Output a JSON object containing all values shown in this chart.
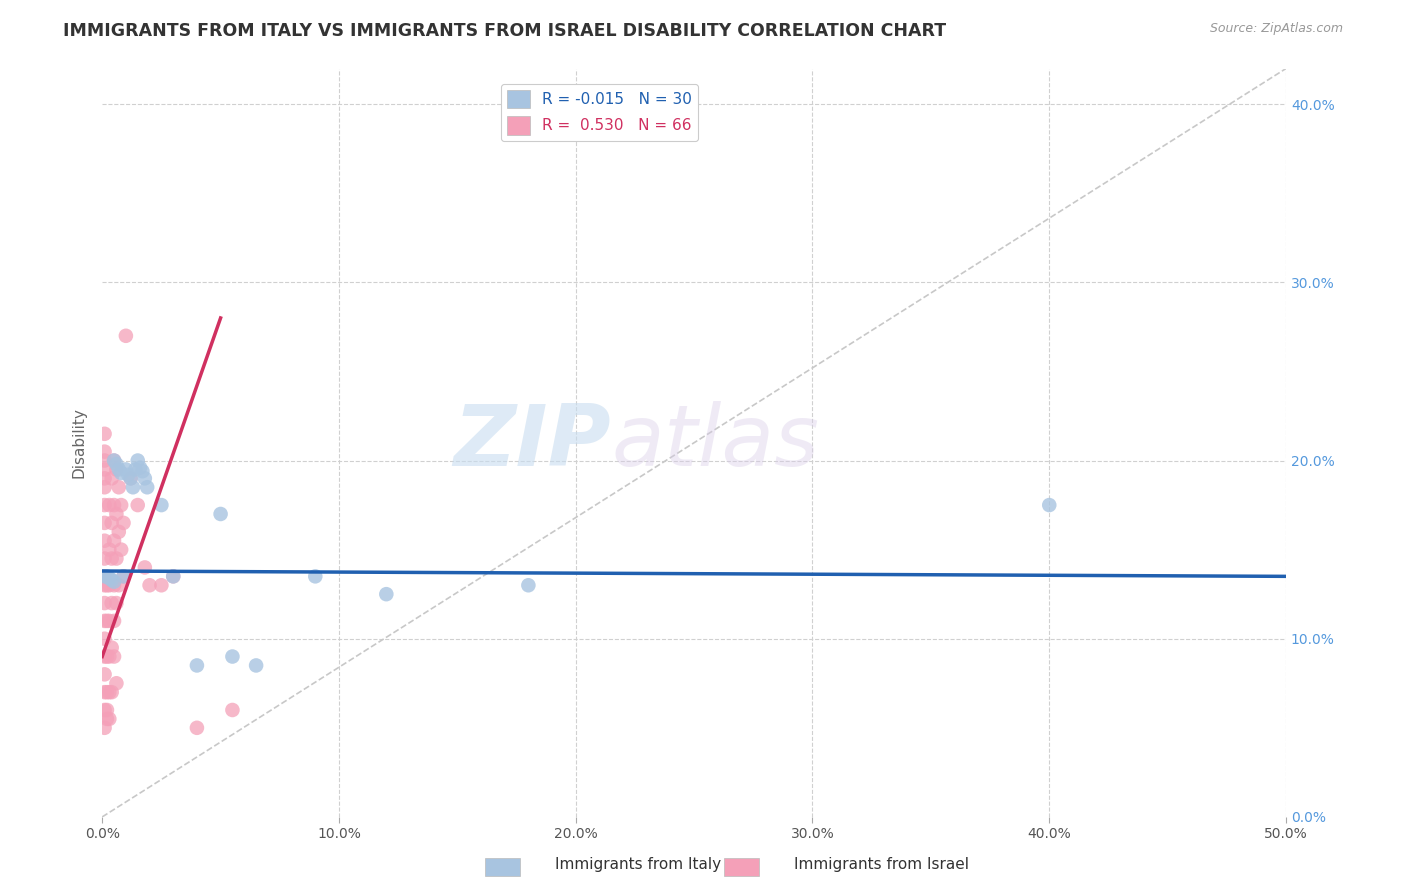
{
  "title": "IMMIGRANTS FROM ITALY VS IMMIGRANTS FROM ISRAEL DISABILITY CORRELATION CHART",
  "source": "Source: ZipAtlas.com",
  "ylabel": "Disability",
  "r_italy": -0.015,
  "n_italy": 30,
  "r_israel": 0.53,
  "n_israel": 66,
  "xlim": [
    0.0,
    0.5
  ],
  "ylim": [
    0.0,
    0.42
  ],
  "italy_color": "#a8c4e0",
  "israel_color": "#f4a0b8",
  "italy_line_color": "#2060b0",
  "israel_line_color": "#d03060",
  "diagonal_color": "#c8c8c8",
  "watermark_zip": "ZIP",
  "watermark_atlas": "atlas",
  "italy_scatter": [
    [
      0.001,
      0.135
    ],
    [
      0.002,
      0.135
    ],
    [
      0.003,
      0.134
    ],
    [
      0.004,
      0.133
    ],
    [
      0.005,
      0.132
    ],
    [
      0.005,
      0.2
    ],
    [
      0.006,
      0.198
    ],
    [
      0.007,
      0.195
    ],
    [
      0.008,
      0.193
    ],
    [
      0.009,
      0.135
    ],
    [
      0.01,
      0.195
    ],
    [
      0.011,
      0.192
    ],
    [
      0.012,
      0.19
    ],
    [
      0.013,
      0.185
    ],
    [
      0.014,
      0.195
    ],
    [
      0.015,
      0.2
    ],
    [
      0.016,
      0.196
    ],
    [
      0.017,
      0.194
    ],
    [
      0.018,
      0.19
    ],
    [
      0.019,
      0.185
    ],
    [
      0.025,
      0.175
    ],
    [
      0.03,
      0.135
    ],
    [
      0.04,
      0.085
    ],
    [
      0.05,
      0.17
    ],
    [
      0.055,
      0.09
    ],
    [
      0.065,
      0.085
    ],
    [
      0.09,
      0.135
    ],
    [
      0.12,
      0.125
    ],
    [
      0.18,
      0.13
    ],
    [
      0.4,
      0.175
    ]
  ],
  "israel_scatter": [
    [
      0.001,
      0.215
    ],
    [
      0.001,
      0.205
    ],
    [
      0.001,
      0.2
    ],
    [
      0.001,
      0.195
    ],
    [
      0.001,
      0.19
    ],
    [
      0.001,
      0.185
    ],
    [
      0.001,
      0.175
    ],
    [
      0.001,
      0.165
    ],
    [
      0.001,
      0.155
    ],
    [
      0.001,
      0.145
    ],
    [
      0.001,
      0.135
    ],
    [
      0.001,
      0.13
    ],
    [
      0.001,
      0.12
    ],
    [
      0.001,
      0.11
    ],
    [
      0.001,
      0.1
    ],
    [
      0.001,
      0.09
    ],
    [
      0.001,
      0.08
    ],
    [
      0.001,
      0.07
    ],
    [
      0.001,
      0.06
    ],
    [
      0.001,
      0.05
    ],
    [
      0.002,
      0.13
    ],
    [
      0.002,
      0.11
    ],
    [
      0.002,
      0.09
    ],
    [
      0.002,
      0.07
    ],
    [
      0.002,
      0.055
    ],
    [
      0.003,
      0.175
    ],
    [
      0.003,
      0.15
    ],
    [
      0.003,
      0.13
    ],
    [
      0.003,
      0.11
    ],
    [
      0.003,
      0.09
    ],
    [
      0.003,
      0.07
    ],
    [
      0.003,
      0.055
    ],
    [
      0.004,
      0.19
    ],
    [
      0.004,
      0.165
    ],
    [
      0.004,
      0.145
    ],
    [
      0.004,
      0.12
    ],
    [
      0.004,
      0.095
    ],
    [
      0.005,
      0.2
    ],
    [
      0.005,
      0.175
    ],
    [
      0.005,
      0.155
    ],
    [
      0.005,
      0.13
    ],
    [
      0.005,
      0.11
    ],
    [
      0.005,
      0.09
    ],
    [
      0.006,
      0.195
    ],
    [
      0.006,
      0.17
    ],
    [
      0.006,
      0.145
    ],
    [
      0.006,
      0.12
    ],
    [
      0.007,
      0.185
    ],
    [
      0.007,
      0.16
    ],
    [
      0.007,
      0.13
    ],
    [
      0.008,
      0.175
    ],
    [
      0.008,
      0.15
    ],
    [
      0.009,
      0.165
    ],
    [
      0.009,
      0.135
    ],
    [
      0.01,
      0.27
    ],
    [
      0.012,
      0.19
    ],
    [
      0.015,
      0.175
    ],
    [
      0.018,
      0.14
    ],
    [
      0.02,
      0.13
    ],
    [
      0.025,
      0.13
    ],
    [
      0.03,
      0.135
    ],
    [
      0.04,
      0.05
    ],
    [
      0.055,
      0.06
    ],
    [
      0.006,
      0.075
    ],
    [
      0.004,
      0.07
    ],
    [
      0.002,
      0.06
    ]
  ],
  "israel_line_endpoints": [
    [
      0.0,
      0.09
    ],
    [
      0.05,
      0.28
    ]
  ],
  "italy_line_endpoints": [
    [
      0.0,
      0.138
    ],
    [
      0.5,
      0.135
    ]
  ]
}
